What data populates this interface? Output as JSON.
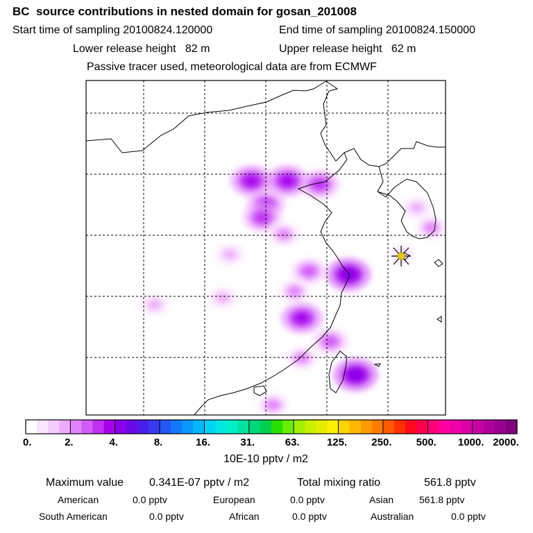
{
  "header": {
    "title": "BC  source contributions in nested domain for gosan_201008",
    "start_label": "Start time of sampling",
    "start_value": "20100824.120000",
    "end_label": "End time of sampling",
    "end_value": "20100824.150000",
    "lower_label": "Lower release height",
    "lower_value": "82 m",
    "upper_label": "Upper release height",
    "upper_value": "62 m",
    "note": "Passive tracer used, meteorological data are from ECMWF"
  },
  "chart_data": {
    "type": "heatmap",
    "title": "BC  source contributions in nested domain for gosan_201008",
    "legend": {
      "unit": "10E-10 pptv / m2",
      "tick_labels": [
        "0.",
        "2.",
        "4.",
        "8.",
        "16.",
        "31.",
        "63.",
        "125.",
        "250.",
        "500.",
        "1000.",
        "2000."
      ],
      "colors": [
        "#ffffff",
        "#fbe6ff",
        "#f5ccfe",
        "#eeaafd",
        "#e283fb",
        "#d25cf8",
        "#bf30f3",
        "#a800ee",
        "#8a00ea",
        "#6a0ae8",
        "#4a1eea",
        "#3a3af0",
        "#2358f5",
        "#1378fa",
        "#0a98fc",
        "#06b6fd",
        "#00d2f5",
        "#00e6e0",
        "#00f0c8",
        "#00e4a0",
        "#00d67a",
        "#00d050",
        "#28e000",
        "#68ee00",
        "#a2f000",
        "#c8f000",
        "#e6ee00",
        "#fff000",
        "#ffd400",
        "#ffb800",
        "#ff9a00",
        "#ff7c00",
        "#ff5a00",
        "#ff3000",
        "#ff0a1e",
        "#ff0050",
        "#ff0078",
        "#ff00a0",
        "#f000a8",
        "#dd00a8",
        "#c800a4",
        "#b0009c",
        "#980090",
        "#800080"
      ]
    },
    "grid": true,
    "receptor_marker": "star",
    "hotspots": [
      {
        "x": 0.46,
        "y": 0.3,
        "level": 6
      },
      {
        "x": 0.56,
        "y": 0.3,
        "level": 6
      },
      {
        "x": 0.5,
        "y": 0.37,
        "level": 5
      },
      {
        "x": 0.49,
        "y": 0.41,
        "level": 5
      },
      {
        "x": 0.65,
        "y": 0.31,
        "level": 5
      },
      {
        "x": 0.73,
        "y": 0.58,
        "level": 7
      },
      {
        "x": 0.62,
        "y": 0.57,
        "level": 4
      },
      {
        "x": 0.6,
        "y": 0.71,
        "level": 6
      },
      {
        "x": 0.58,
        "y": 0.63,
        "level": 3
      },
      {
        "x": 0.75,
        "y": 0.88,
        "level": 7
      },
      {
        "x": 0.6,
        "y": 0.83,
        "level": 3
      },
      {
        "x": 0.68,
        "y": 0.78,
        "level": 4
      },
      {
        "x": 0.55,
        "y": 0.46,
        "level": 3
      },
      {
        "x": 0.4,
        "y": 0.52,
        "level": 2
      },
      {
        "x": 0.92,
        "y": 0.38,
        "level": 2
      },
      {
        "x": 0.96,
        "y": 0.44,
        "level": 3
      },
      {
        "x": 0.38,
        "y": 0.65,
        "level": 2
      },
      {
        "x": 0.52,
        "y": 0.97,
        "level": 3
      },
      {
        "x": 0.19,
        "y": 0.67,
        "level": 2
      },
      {
        "x": 0.88,
        "y": 0.52,
        "level": 1
      }
    ]
  },
  "summary": {
    "max_label": "Maximum value",
    "max_value": "0.341E-07 pptv / m2",
    "total_label": "Total mixing ratio",
    "total_value": "561.8 pptv",
    "regions": [
      {
        "name": "American",
        "value": "0.0 pptv"
      },
      {
        "name": "European",
        "value": "0.0 pptv"
      },
      {
        "name": "Asian",
        "value": "561.8 pptv"
      },
      {
        "name": "South American",
        "value": "0.0 pptv"
      },
      {
        "name": "African",
        "value": "0.0 pptv"
      },
      {
        "name": "Australian",
        "value": "0.0 pptv"
      }
    ]
  }
}
